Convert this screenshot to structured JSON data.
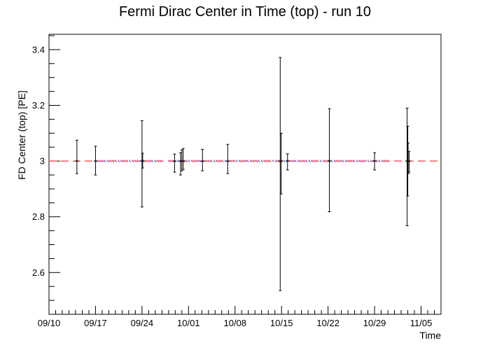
{
  "chart_data": {
    "type": "scatter",
    "title": "Fermi Dirac Center in Time (top) - run 10",
    "xlabel": "Time",
    "ylabel": "FD Center (top) [PE]",
    "x_ticks": [
      "09/10",
      "09/17",
      "09/24",
      "10/01",
      "10/08",
      "10/15",
      "10/22",
      "10/29",
      "11/05"
    ],
    "x_range_days": [
      0,
      59
    ],
    "y_ticks": [
      "2.6",
      "2.8",
      "3",
      "3.2",
      "3.4"
    ],
    "y_tick_values": [
      2.6,
      2.8,
      3.0,
      3.2,
      3.4
    ],
    "ylim": [
      2.45,
      3.455
    ],
    "reference_line": {
      "y": 3.0,
      "color": "#ff6666",
      "style": "dashed"
    },
    "series": [
      {
        "style": "error-bars",
        "color": "#000000",
        "points": [
          {
            "x": 4.2,
            "y": 3.0,
            "err_low": 0.045,
            "err_high": 0.075
          },
          {
            "x": 7.0,
            "y": 3.0,
            "err_low": 0.05,
            "err_high": 0.053
          },
          {
            "x": 14.0,
            "y": 3.0,
            "err_low": 0.165,
            "err_high": 0.145
          },
          {
            "x": 14.1,
            "y": 3.0,
            "err_low": 0.025,
            "err_high": 0.028
          },
          {
            "x": 18.9,
            "y": 3.0,
            "err_low": 0.04,
            "err_high": 0.025
          },
          {
            "x": 19.8,
            "y": 3.0,
            "err_low": 0.05,
            "err_high": 0.03
          },
          {
            "x": 20.0,
            "y": 3.0,
            "err_low": 0.035,
            "err_high": 0.04
          },
          {
            "x": 20.2,
            "y": 3.0,
            "err_low": 0.03,
            "err_high": 0.045
          },
          {
            "x": 23.1,
            "y": 3.0,
            "err_low": 0.035,
            "err_high": 0.042
          },
          {
            "x": 26.9,
            "y": 3.0,
            "err_low": 0.045,
            "err_high": 0.06
          },
          {
            "x": 34.8,
            "y": 3.0,
            "err_low": 0.465,
            "err_high": 0.372
          },
          {
            "x": 34.95,
            "y": 3.0,
            "err_low": 0.118,
            "err_high": 0.1
          },
          {
            "x": 35.9,
            "y": 3.0,
            "err_low": 0.032,
            "err_high": 0.026
          },
          {
            "x": 42.2,
            "y": 3.0,
            "err_low": 0.182,
            "err_high": 0.188
          },
          {
            "x": 49.0,
            "y": 3.0,
            "err_low": 0.032,
            "err_high": 0.03
          },
          {
            "x": 53.9,
            "y": 3.0,
            "err_low": 0.232,
            "err_high": 0.19
          },
          {
            "x": 54.0,
            "y": 3.0,
            "err_low": 0.125,
            "err_high": 0.125
          },
          {
            "x": 54.05,
            "y": 3.0,
            "err_low": 0.045,
            "err_high": 0.065
          },
          {
            "x": 54.2,
            "y": 3.0,
            "err_low": 0.04,
            "err_high": 0.035
          }
        ]
      },
      {
        "style": "dense-markers",
        "color": "#3333cc",
        "x_segments": [
          [
            7.0,
            17.0
          ],
          [
            18.0,
            51.0
          ]
        ],
        "y": 3.0
      }
    ],
    "grid": false
  }
}
